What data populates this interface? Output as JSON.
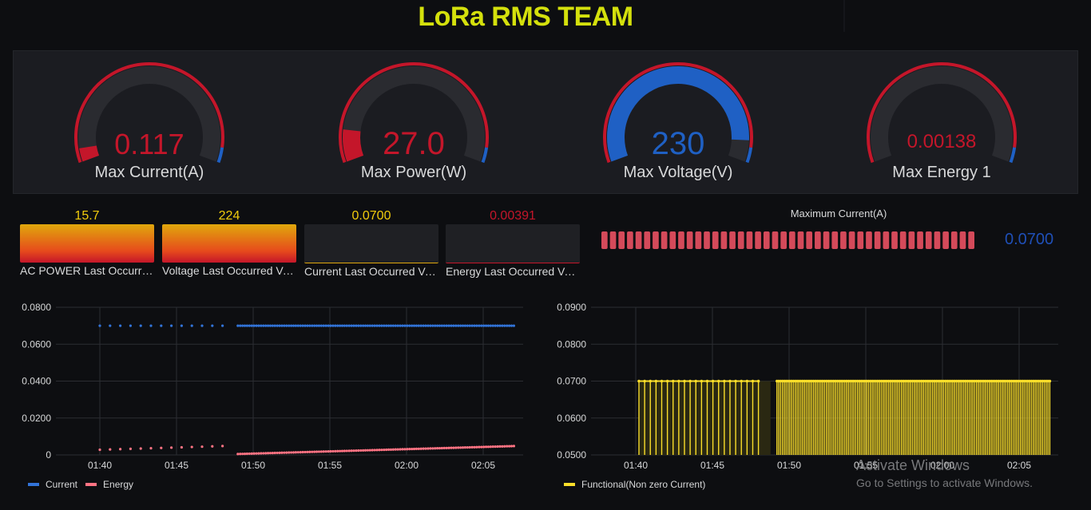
{
  "page_title": "LoRa RMS TEAM",
  "colors": {
    "red": "#c4162a",
    "blue": "#1f60c4",
    "yellow": "#f2cc0c",
    "orange": "#e0a80c"
  },
  "gauges": [
    {
      "label": "Max Current(A)",
      "value": "0.117",
      "color": "#c4162a",
      "fill_fraction": 0.05
    },
    {
      "label": "Max Power(W)",
      "value": "27.0",
      "color": "#c4162a",
      "fill_fraction": 0.12
    },
    {
      "label": "Max Voltage(V)",
      "value": "230",
      "color": "#1f60c4",
      "fill_fraction": 0.92
    },
    {
      "label": "Max Energy 1",
      "value": "0.00138",
      "color": "#c4162a",
      "fill_fraction": 0.0
    }
  ],
  "stats": [
    {
      "label": "AC POWER Last Occurred Value",
      "value": "15.7",
      "value_color": "#f2cc0c",
      "filled": true
    },
    {
      "label": "Voltage Last Occurred Value",
      "value": "224",
      "value_color": "#f2cc0c",
      "filled": true
    },
    {
      "label": "Current Last Occurred Value",
      "value": "0.0700",
      "value_color": "#f2cc0c",
      "filled": false
    },
    {
      "label": "Energy Last Occurred Value",
      "value": "0.00391",
      "value_color": "#c4162a",
      "filled": false
    }
  ],
  "bargauge": {
    "title": "Maximum Current(A)",
    "value": "0.0700",
    "cells": 44
  },
  "chart_data": [
    {
      "type": "scatter",
      "x_ticks": [
        "01:40",
        "01:45",
        "01:50",
        "01:55",
        "02:00",
        "02:05"
      ],
      "y_ticks": [
        "0.0800",
        "0.0600",
        "0.0400",
        "0.0200",
        "0"
      ],
      "ylim": [
        0,
        0.08
      ],
      "series": [
        {
          "name": "Current",
          "color": "#3274d9",
          "segments": [
            {
              "from": "01:40",
              "to": "01:48",
              "value": 0.07,
              "points": 13
            },
            {
              "from": "01:49",
              "to": "02:07",
              "value": 0.07,
              "points": 120
            }
          ]
        },
        {
          "name": "Energy",
          "color": "#ff7383",
          "segments": [
            {
              "from": "01:40",
              "to": "01:48",
              "start": 0.0028,
              "end": 0.0048,
              "points": 13
            },
            {
              "from": "01:49",
              "to": "02:07",
              "start": 0.0005,
              "end": 0.0048,
              "points": 120
            }
          ]
        }
      ]
    },
    {
      "type": "bar",
      "x_ticks": [
        "01:40",
        "01:45",
        "01:50",
        "01:55",
        "02:00",
        "02:05"
      ],
      "y_ticks": [
        "0.0900",
        "0.0800",
        "0.0700",
        "0.0600",
        "0.0500"
      ],
      "ylim": [
        0.05,
        0.09
      ],
      "series": [
        {
          "name": "Functional(Non zero Current)",
          "color": "#fade2a",
          "segments": [
            {
              "from": "01:40",
              "to": "01:48",
              "value": 0.07,
              "bars": 22
            },
            {
              "from": "01:49",
              "to": "02:07",
              "value": 0.07,
              "bars": 150
            }
          ]
        }
      ]
    }
  ],
  "watermark": {
    "line1": "Activate Windows",
    "line2": "Go to Settings to activate Windows."
  }
}
